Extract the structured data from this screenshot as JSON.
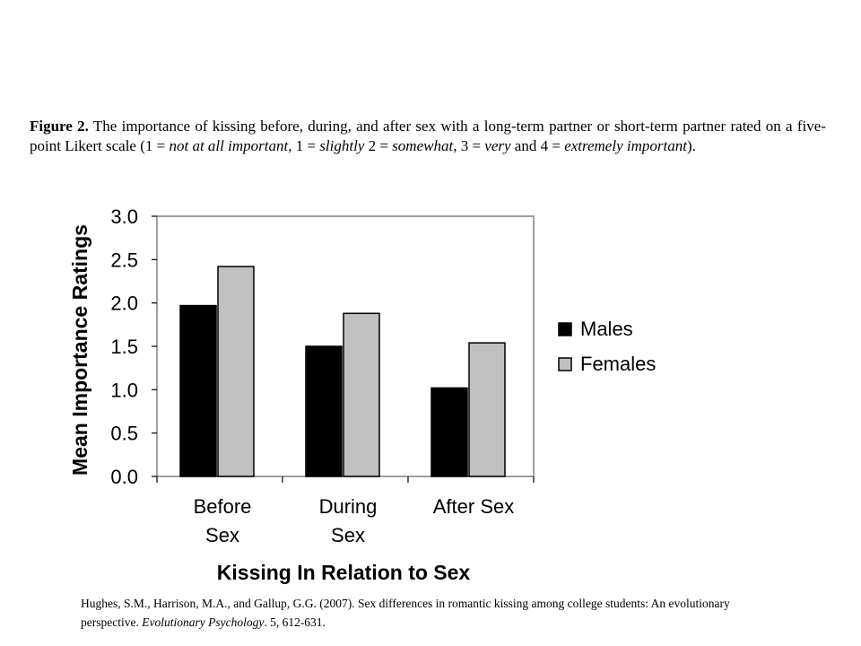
{
  "caption": {
    "figure_label": "Figure 2.",
    "part1": " The importance of kissing before, during, and after sex with a long-term partner or short-term partner rated on a five-point Likert scale (1 = ",
    "not_at_all": "not at all important",
    "part2": ", 1 = ",
    "slightly": "slightly",
    "part3": " 2 = ",
    "somewhat": "somewhat",
    "part4": ", 3 = ",
    "very": "very",
    "part5": " and 4 = ",
    "extremely": "extremely important",
    "part6": ")."
  },
  "citation": {
    "authors": "Hughes, S.M., Harrison, M.A., and Gallup, G.G. (2007). Sex differences in romantic kissing among college students: An evolutionary perspective. ",
    "journal": "Evolutionary Psychology",
    "details": ". 5, 612-631."
  },
  "chart_data": {
    "type": "bar",
    "xlabel": "Kissing In Relation to Sex",
    "ylabel": "Mean Importance Ratings",
    "ylim": [
      0,
      3
    ],
    "yticks": [
      "0.0",
      "0.5",
      "1.0",
      "1.5",
      "2.0",
      "2.5",
      "3.0"
    ],
    "categories": [
      [
        "Before",
        "Sex"
      ],
      [
        "During",
        "Sex"
      ],
      [
        "After Sex"
      ]
    ],
    "series": [
      {
        "name": "Males",
        "values": [
          1.97,
          1.5,
          1.02
        ],
        "color": "#000000"
      },
      {
        "name": "Females",
        "values": [
          2.42,
          1.88,
          1.54
        ],
        "color": "#c0c0c0"
      }
    ],
    "legend_position": "right"
  }
}
